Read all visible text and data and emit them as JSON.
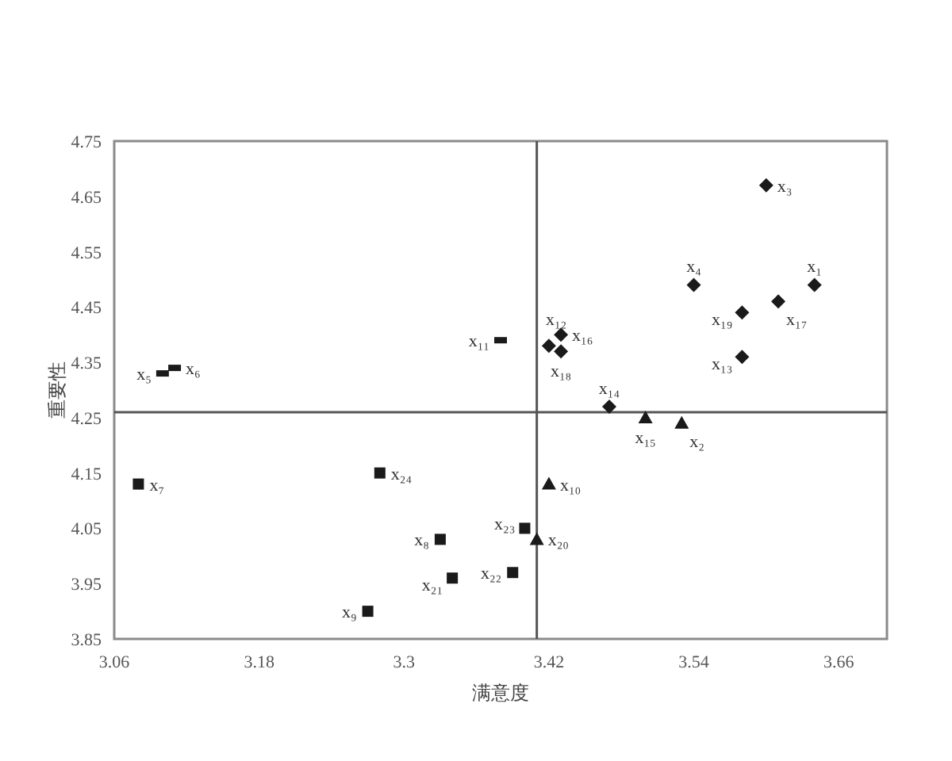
{
  "chart_data": {
    "type": "scatter",
    "xlabel": "满意度",
    "ylabel": "重要性",
    "xlim": [
      3.06,
      3.7
    ],
    "xticks": [
      3.06,
      3.18,
      3.3,
      3.42,
      3.54,
      3.66
    ],
    "ylim": [
      3.85,
      4.75
    ],
    "yticks": [
      3.85,
      3.95,
      4.05,
      4.15,
      4.25,
      4.35,
      4.45,
      4.55,
      4.65,
      4.75
    ],
    "ref_lines": [
      {
        "axis": "x",
        "value": 3.41,
        "color": "#555555"
      },
      {
        "axis": "y",
        "value": 4.26,
        "color": "#555555"
      }
    ],
    "series": [
      {
        "marker": "diamond",
        "color": "#1a1a1a",
        "x": [
          3.64,
          3.6,
          3.54,
          3.42,
          3.58,
          3.47,
          3.43,
          3.61,
          3.43,
          3.58
        ],
        "values": [
          4.49,
          4.67,
          4.49,
          4.38,
          4.36,
          4.27,
          4.4,
          4.46,
          4.37,
          4.44
        ]
      },
      {
        "marker": "triangle",
        "color": "#1a1a1a",
        "x": [
          3.53,
          3.42,
          3.5,
          3.41
        ],
        "values": [
          4.24,
          4.13,
          4.25,
          4.03
        ]
      },
      {
        "marker": "square",
        "color": "#1a1a1a",
        "x": [
          3.08,
          3.33,
          3.27,
          3.34,
          3.39,
          3.4,
          3.28
        ],
        "values": [
          4.13,
          4.03,
          3.9,
          3.96,
          3.97,
          4.05,
          4.15
        ]
      },
      {
        "color": "#1a1a1a",
        "x": [
          3.1,
          3.11,
          3.38
        ],
        "values": [
          4.33,
          4.34,
          4.39
        ]
      }
    ],
    "annotations": [
      {
        "text": "x₁",
        "x": 3.64,
        "y": 4.49
      },
      {
        "text": "x₂",
        "x": 3.53,
        "y": 4.24
      },
      {
        "text": "x₃",
        "x": 3.6,
        "y": 4.67
      },
      {
        "text": "x₄",
        "x": 3.54,
        "y": 4.49
      },
      {
        "text": "x₅",
        "x": 3.1,
        "y": 4.33
      },
      {
        "text": "x₆",
        "x": 3.11,
        "y": 4.34
      },
      {
        "text": "x₇",
        "x": 3.08,
        "y": 4.13
      },
      {
        "text": "x₈",
        "x": 3.33,
        "y": 4.03
      },
      {
        "text": "x₉",
        "x": 3.27,
        "y": 3.9
      },
      {
        "text": "x₁₀",
        "x": 3.42,
        "y": 4.13
      },
      {
        "text": "x₁₁",
        "x": 3.38,
        "y": 4.39
      },
      {
        "text": "x₁₂",
        "x": 3.42,
        "y": 4.38
      },
      {
        "text": "x₁₃",
        "x": 3.58,
        "y": 4.36
      },
      {
        "text": "x₁₄",
        "x": 3.47,
        "y": 4.27
      },
      {
        "text": "x₁₅",
        "x": 3.5,
        "y": 4.25
      },
      {
        "text": "x₁₆",
        "x": 3.43,
        "y": 4.4
      },
      {
        "text": "x₁₇",
        "x": 3.61,
        "y": 4.46
      },
      {
        "text": "x₁₈",
        "x": 3.43,
        "y": 4.37
      },
      {
        "text": "x₁₉",
        "x": 3.58,
        "y": 4.44
      },
      {
        "text": "x₂₀",
        "x": 3.41,
        "y": 4.03
      },
      {
        "text": "x₂₁",
        "x": 3.34,
        "y": 3.96
      },
      {
        "text": "x₂₂",
        "x": 3.39,
        "y": 3.97
      },
      {
        "text": "x₂₃",
        "x": 3.4,
        "y": 4.05
      },
      {
        "text": "x₂₄",
        "x": 3.28,
        "y": 4.15
      }
    ]
  }
}
